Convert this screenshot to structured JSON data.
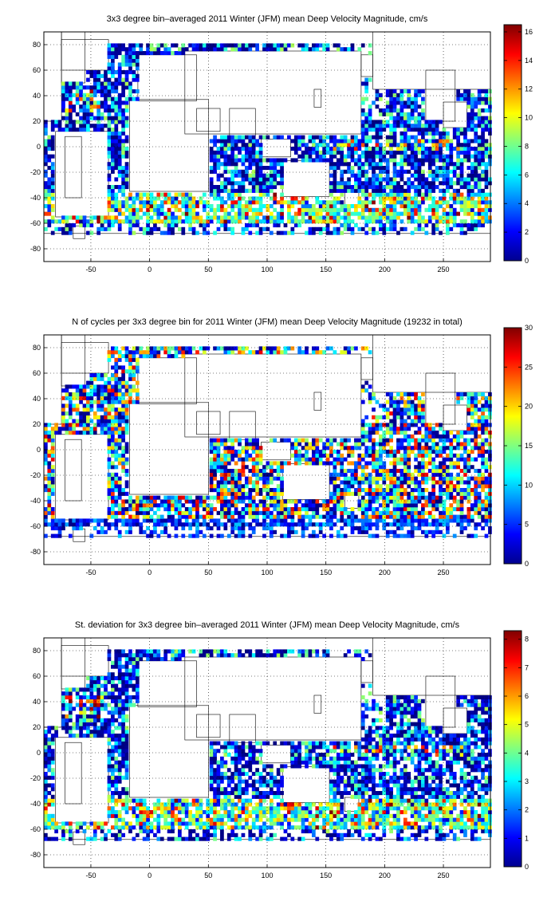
{
  "chart_data": [
    {
      "type": "heatmap",
      "title": "3x3 degree bin–averaged 2011 Winter (JFM) mean Deep Velocity Magnitude, cm/s",
      "xlabel": "",
      "ylabel": "",
      "xlim": [
        -90,
        290
      ],
      "ylim": [
        -90,
        90
      ],
      "xticks": [
        -50,
        0,
        50,
        100,
        150,
        200,
        250
      ],
      "yticks": [
        -80,
        -60,
        -40,
        -20,
        0,
        20,
        40,
        60,
        80
      ],
      "grid": true,
      "bin_size_deg": 3,
      "colormap": "jet",
      "colorbar": {
        "min": 0,
        "max": 16.5,
        "ticks": [
          0,
          2,
          4,
          6,
          8,
          10,
          12,
          14,
          16
        ]
      }
    },
    {
      "type": "heatmap",
      "title": "N of cycles per 3x3 degree bin for 2011 Winter (JFM) mean Deep Velocity Magnitude (19232 in total)",
      "xlabel": "",
      "ylabel": "",
      "xlim": [
        -90,
        290
      ],
      "ylim": [
        -90,
        90
      ],
      "xticks": [
        -50,
        0,
        50,
        100,
        150,
        200,
        250
      ],
      "yticks": [
        -80,
        -60,
        -40,
        -20,
        0,
        20,
        40,
        60,
        80
      ],
      "grid": true,
      "bin_size_deg": 3,
      "colormap": "jet",
      "colorbar": {
        "min": 0,
        "max": 30,
        "ticks": [
          0,
          5,
          10,
          15,
          20,
          25,
          30
        ]
      }
    },
    {
      "type": "heatmap",
      "title": "St. deviation for 3x3 degree bin–averaged 2011 Winter (JFM) mean Deep Velocity Magnitude, cm/s",
      "xlabel": "",
      "ylabel": "",
      "xlim": [
        -90,
        290
      ],
      "ylim": [
        -90,
        90
      ],
      "xticks": [
        -50,
        0,
        50,
        100,
        150,
        200,
        250
      ],
      "yticks": [
        -80,
        -60,
        -40,
        -20,
        0,
        20,
        40,
        60,
        80
      ],
      "grid": true,
      "bin_size_deg": 3,
      "colormap": "jet",
      "colorbar": {
        "min": 0,
        "max": 8.3,
        "ticks": [
          0,
          1,
          2,
          3,
          4,
          5,
          6,
          7,
          8
        ]
      }
    }
  ]
}
